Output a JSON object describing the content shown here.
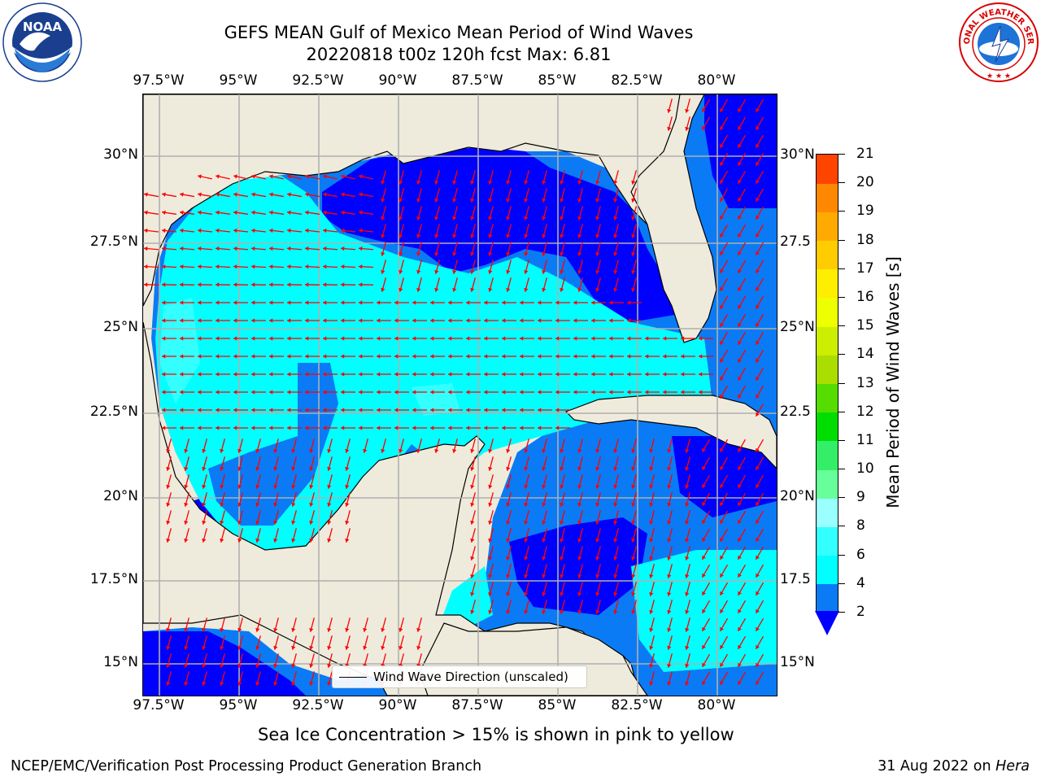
{
  "title_line1": "GEFS MEAN Gulf of Mexico Mean Period of Wind Waves",
  "title_line2": "20220818 t00z 120h fcst   Max: 6.81",
  "lon_labels": [
    "97.5°W",
    "95°W",
    "92.5°W",
    "90°W",
    "87.5°W",
    "85°W",
    "82.5°W",
    "80°W"
  ],
  "lat_labels_left": [
    "30°N",
    "27.5°N",
    "25°N",
    "22.5°N",
    "20°N",
    "17.5°N",
    "15°N"
  ],
  "lat_labels_right": [
    "30°N",
    "27.5",
    "25°N",
    "22.5",
    "20°N",
    "17.5",
    "15°N"
  ],
  "colorbar": {
    "label": "Mean Period of Wind Waves [s]",
    "ticks": [
      "2",
      "4",
      "6",
      "8",
      "9",
      "10",
      "11",
      "12",
      "13",
      "14",
      "15",
      "16",
      "17",
      "18",
      "19",
      "20",
      "21"
    ],
    "colors": [
      "#0a7bf5",
      "#00ffff",
      "#33ffff",
      "#99ffff",
      "#66ff99",
      "#33ee66",
      "#00dd00",
      "#55dd00",
      "#aadd00",
      "#ccee00",
      "#eeff00",
      "#ffee00",
      "#ffcc00",
      "#ffaa00",
      "#ff8800",
      "#ff4400",
      "#ff1100"
    ],
    "under_color": "#0000ff"
  },
  "legend_label": "Wind Wave Direction (unscaled)",
  "footer_note": "Sea Ice Concentration > 15% is shown in pink to yellow",
  "footer_left": "NCEP/EMC/Verification Post Processing Product Generation Branch",
  "footer_date": "31 Aug 2022 on",
  "footer_host": "Hera",
  "noaa_logo_text": "NOAA",
  "nws_logo_text": "NATIONAL WEATHER SERVICE",
  "colors": {
    "land": "#efebdc",
    "period_lt2": "#0000ff",
    "period_2_4": "#0a7bf5",
    "period_4_6": "#00ffff",
    "period_6_8": "#33ffff",
    "arrow": "#ff0000",
    "grid": "#b0b0b0"
  }
}
